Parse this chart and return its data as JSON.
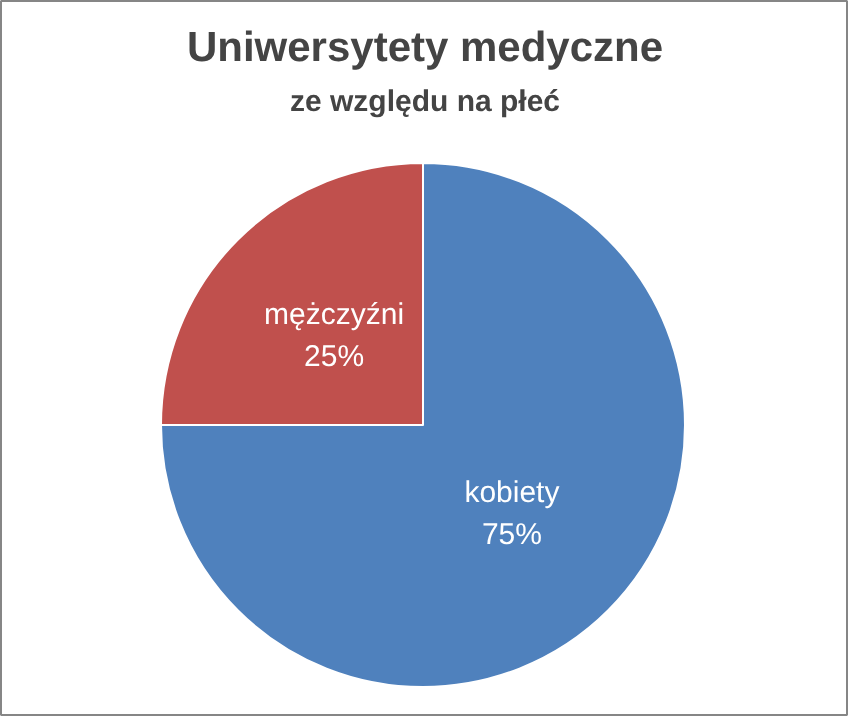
{
  "chart_data": {
    "type": "pie",
    "title": "Uniwersytety medyczne",
    "subtitle": "ze względu na płeć",
    "categories": [
      "kobiety",
      "mężczyźni"
    ],
    "values": [
      75,
      25
    ],
    "colors": [
      "#4f81bd",
      "#c0504d"
    ],
    "value_labels": [
      "75%",
      "25%"
    ]
  }
}
